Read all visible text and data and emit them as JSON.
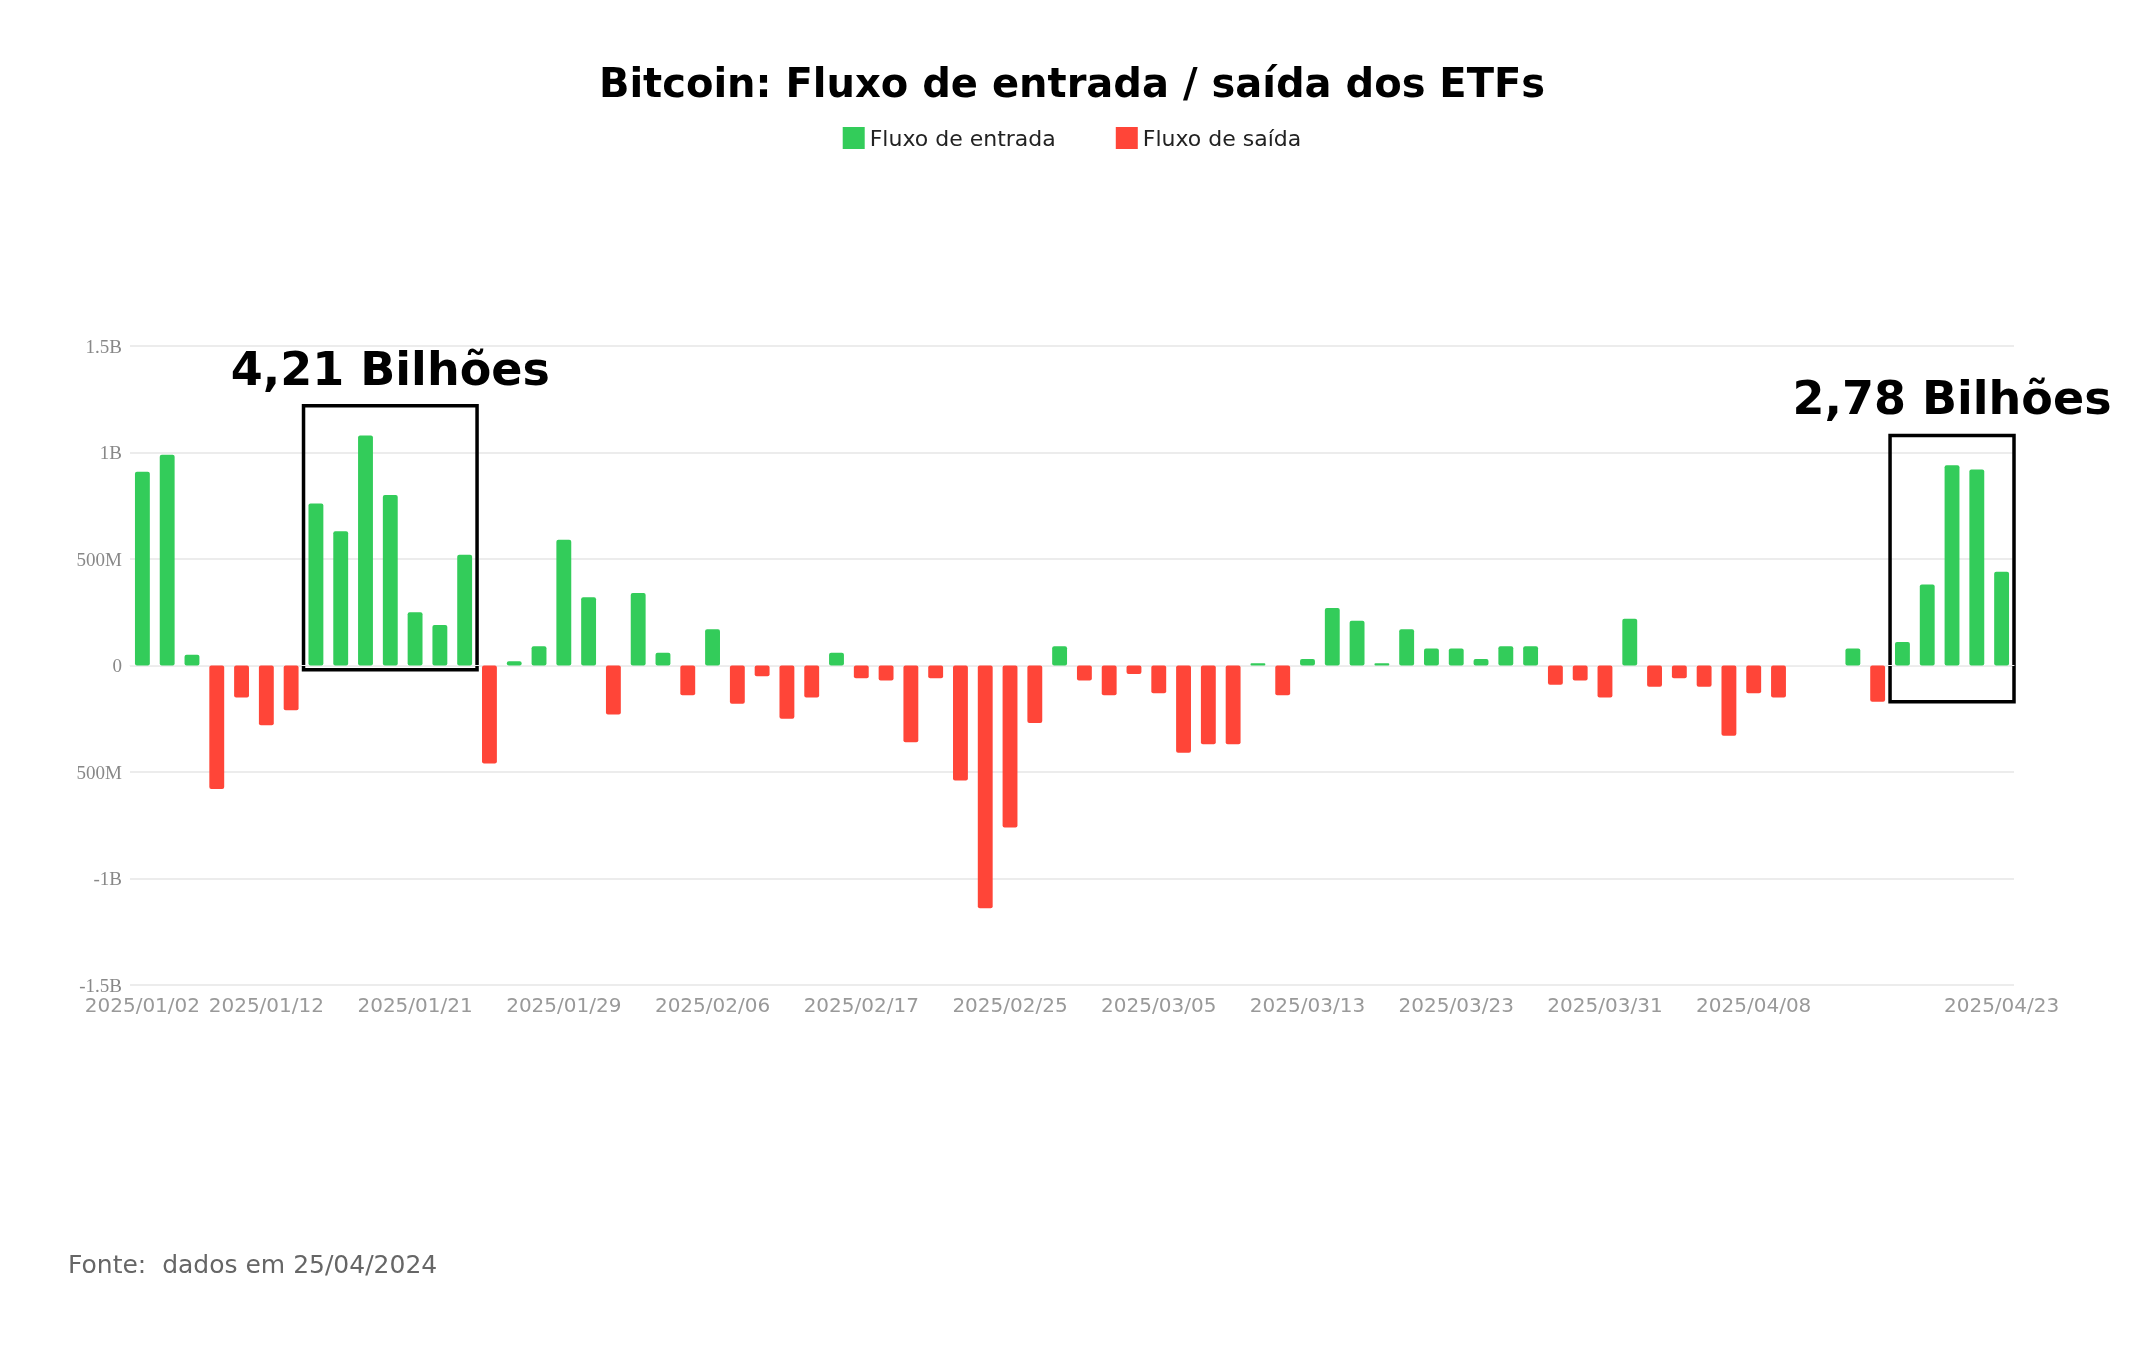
{
  "chart_data": {
    "type": "bar",
    "title": "Bitcoin: Fluxo de entrada / saída dos ETFs",
    "categories": [
      "2025/01/02",
      null,
      null,
      null,
      null,
      "2025/01/12",
      null,
      null,
      null,
      null,
      null,
      "2025/01/21",
      null,
      null,
      null,
      null,
      null,
      "2025/01/29",
      null,
      null,
      null,
      null,
      null,
      "2025/02/06",
      null,
      null,
      null,
      null,
      null,
      "2025/02/17",
      null,
      null,
      null,
      null,
      null,
      "2025/02/25",
      null,
      null,
      null,
      null,
      null,
      "2025/03/05",
      null,
      null,
      null,
      null,
      null,
      "2025/03/13",
      null,
      null,
      null,
      null,
      null,
      "2025/03/23",
      null,
      null,
      null,
      null,
      null,
      "2025/03/31",
      null,
      null,
      null,
      null,
      null,
      "2025/04/08",
      null,
      null,
      null,
      null,
      null,
      null,
      null,
      null,
      null,
      "2025/04/23"
    ],
    "series": [
      {
        "name": "Fluxo de entrada",
        "color": "#33cc5a",
        "values": [
          910000000,
          990000000,
          50000000,
          null,
          null,
          null,
          null,
          760000000,
          630000000,
          1080000000,
          800000000,
          250000000,
          190000000,
          520000000,
          null,
          20000000,
          90000000,
          590000000,
          320000000,
          null,
          340000000,
          60000000,
          null,
          170000000,
          null,
          null,
          null,
          null,
          60000000,
          null,
          null,
          null,
          null,
          null,
          null,
          null,
          null,
          90000000,
          null,
          null,
          null,
          null,
          null,
          null,
          null,
          10000000,
          null,
          30000000,
          270000000,
          210000000,
          10000000,
          170000000,
          80000000,
          80000000,
          30000000,
          90000000,
          90000000,
          null,
          null,
          null,
          220000000,
          null,
          null,
          null,
          null,
          null,
          null,
          0,
          0,
          80000000,
          null,
          110000000,
          380000000,
          940000000,
          920000000,
          440000000
        ]
      },
      {
        "name": "Fluxo de saída",
        "color": "#ff4538",
        "values": [
          null,
          null,
          null,
          -580000000,
          -150000000,
          -280000000,
          -210000000,
          null,
          null,
          null,
          null,
          null,
          null,
          null,
          -460000000,
          null,
          null,
          null,
          null,
          -230000000,
          null,
          null,
          -140000000,
          null,
          -180000000,
          -50000000,
          -250000000,
          -150000000,
          null,
          -60000000,
          -70000000,
          -360000000,
          -60000000,
          -540000000,
          -1140000000,
          -760000000,
          -270000000,
          null,
          -70000000,
          -140000000,
          -40000000,
          -130000000,
          -410000000,
          -370000000,
          -370000000,
          null,
          -140000000,
          null,
          null,
          null,
          null,
          null,
          null,
          null,
          null,
          null,
          null,
          -90000000,
          -70000000,
          -150000000,
          null,
          -100000000,
          -60000000,
          -100000000,
          -330000000,
          -130000000,
          -150000000,
          null,
          null,
          null,
          -170000000,
          null,
          null,
          null,
          null,
          null
        ]
      }
    ],
    "stacked": true,
    "ylim": [
      -1500000000,
      1500000000
    ],
    "yticks": [
      {
        "value": -1500000000,
        "label": "-1.5B"
      },
      {
        "value": -1000000000,
        "label": "-1B"
      },
      {
        "value": -500000000,
        "label": "500M"
      },
      0,
      {
        "value": 500000000,
        "label": "500M"
      },
      {
        "value": 1000000000,
        "label": "1B"
      },
      {
        "value": 1500000000,
        "label": "1.5B"
      }
    ],
    "grid": "y",
    "legend": "top",
    "annotations": [
      "4,21 Bilhões",
      "2,78 Bilhões",
      "Fonte:  dados em 25/04/2024"
    ]
  }
}
